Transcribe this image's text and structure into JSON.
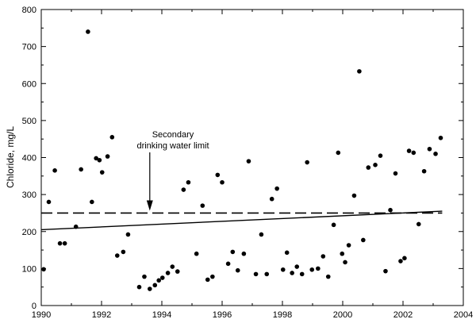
{
  "chart_data": {
    "type": "scatter",
    "title": "",
    "xlabel": "",
    "ylabel": "Chloride, mg/L",
    "xlim": [
      1990,
      2004
    ],
    "ylim": [
      0,
      800
    ],
    "x_ticks": [
      1990,
      1992,
      1994,
      1996,
      1998,
      2000,
      2002,
      2004
    ],
    "y_ticks": [
      0,
      100,
      200,
      300,
      400,
      500,
      600,
      700,
      800
    ],
    "grid": false,
    "colors": {
      "points": "#000000",
      "lines": "#000000"
    },
    "points": [
      [
        1990.08,
        98
      ],
      [
        1990.25,
        280
      ],
      [
        1990.45,
        365
      ],
      [
        1990.62,
        168
      ],
      [
        1990.78,
        168
      ],
      [
        1991.15,
        213
      ],
      [
        1991.32,
        368
      ],
      [
        1991.55,
        740
      ],
      [
        1991.68,
        280
      ],
      [
        1991.82,
        398
      ],
      [
        1991.93,
        393
      ],
      [
        1992.02,
        360
      ],
      [
        1992.2,
        403
      ],
      [
        1992.35,
        455
      ],
      [
        1992.52,
        135
      ],
      [
        1992.72,
        145
      ],
      [
        1992.88,
        192
      ],
      [
        1993.25,
        50
      ],
      [
        1993.42,
        78
      ],
      [
        1993.6,
        45
      ],
      [
        1993.77,
        55
      ],
      [
        1993.9,
        68
      ],
      [
        1994.02,
        75
      ],
      [
        1994.2,
        88
      ],
      [
        1994.35,
        105
      ],
      [
        1994.52,
        92
      ],
      [
        1994.72,
        313
      ],
      [
        1994.88,
        333
      ],
      [
        1995.15,
        140
      ],
      [
        1995.35,
        270
      ],
      [
        1995.52,
        70
      ],
      [
        1995.68,
        78
      ],
      [
        1995.85,
        353
      ],
      [
        1996.0,
        333
      ],
      [
        1996.2,
        113
      ],
      [
        1996.35,
        145
      ],
      [
        1996.52,
        95
      ],
      [
        1996.72,
        140
      ],
      [
        1996.88,
        390
      ],
      [
        1997.12,
        85
      ],
      [
        1997.3,
        192
      ],
      [
        1997.48,
        85
      ],
      [
        1997.65,
        288
      ],
      [
        1997.82,
        316
      ],
      [
        1998.02,
        97
      ],
      [
        1998.15,
        143
      ],
      [
        1998.32,
        88
      ],
      [
        1998.48,
        105
      ],
      [
        1998.65,
        85
      ],
      [
        1998.82,
        387
      ],
      [
        1998.98,
        97
      ],
      [
        1999.18,
        100
      ],
      [
        1999.35,
        133
      ],
      [
        1999.52,
        78
      ],
      [
        1999.7,
        218
      ],
      [
        1999.85,
        413
      ],
      [
        1999.98,
        140
      ],
      [
        2000.08,
        117
      ],
      [
        2000.2,
        163
      ],
      [
        2000.38,
        297
      ],
      [
        2000.55,
        633
      ],
      [
        2000.68,
        177
      ],
      [
        2000.85,
        373
      ],
      [
        2001.08,
        380
      ],
      [
        2001.25,
        405
      ],
      [
        2001.42,
        93
      ],
      [
        2001.58,
        258
      ],
      [
        2001.75,
        357
      ],
      [
        2001.92,
        120
      ],
      [
        2002.05,
        128
      ],
      [
        2002.2,
        418
      ],
      [
        2002.35,
        413
      ],
      [
        2002.52,
        220
      ],
      [
        2002.7,
        363
      ],
      [
        2002.88,
        423
      ],
      [
        2003.08,
        410
      ],
      [
        2003.25,
        453
      ]
    ],
    "reference_line": {
      "y": 250,
      "x_range": [
        1990,
        2003.3
      ]
    },
    "trend_line": {
      "points": [
        [
          1990,
          205
        ],
        [
          2003.3,
          255
        ]
      ]
    },
    "annotation": {
      "lines": [
        "Secondary",
        "drinking water limit"
      ],
      "arrow_x": 1993.6,
      "arrow_to_y": 250
    }
  }
}
